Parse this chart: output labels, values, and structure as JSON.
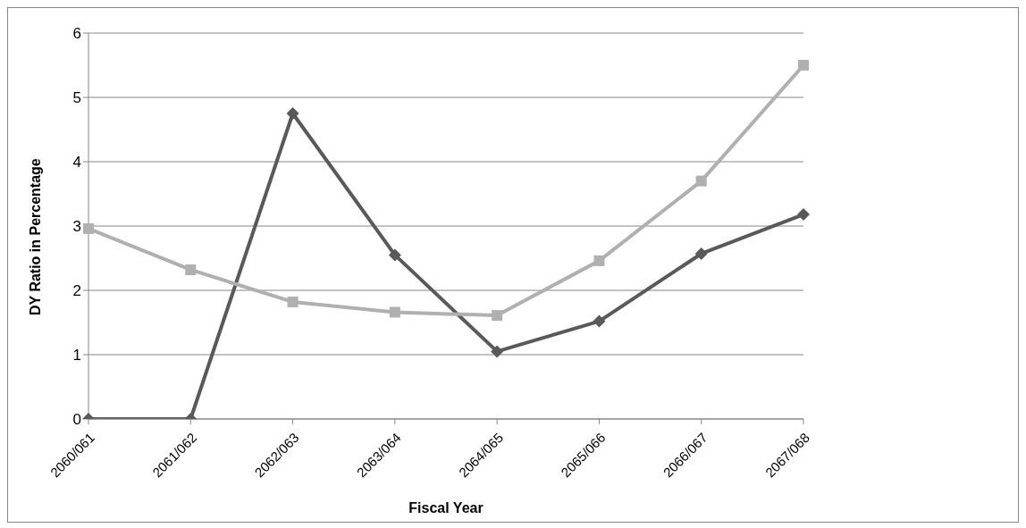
{
  "chart_data": {
    "type": "line",
    "xlabel": "Fiscal Year",
    "ylabel": "DY Ratio in Percentage",
    "categories": [
      "2060/061",
      "2061/062",
      "2062/063",
      "2063/064",
      "2064/065",
      "2065/066",
      "2066/067",
      "2067/068"
    ],
    "series": [
      {
        "color": "#595959",
        "marker": "diamond",
        "values": [
          0,
          0,
          4.75,
          2.55,
          1.05,
          1.52,
          2.57,
          3.18
        ]
      },
      {
        "color": "#b0b0b0",
        "marker": "square",
        "values": [
          2.96,
          2.32,
          1.82,
          1.66,
          1.61,
          2.46,
          3.7,
          5.5
        ]
      }
    ],
    "ylim": [
      0,
      6
    ],
    "yticks": [
      0,
      1,
      2,
      3,
      4,
      5,
      6
    ],
    "grid": "y",
    "line_style": "solid"
  }
}
